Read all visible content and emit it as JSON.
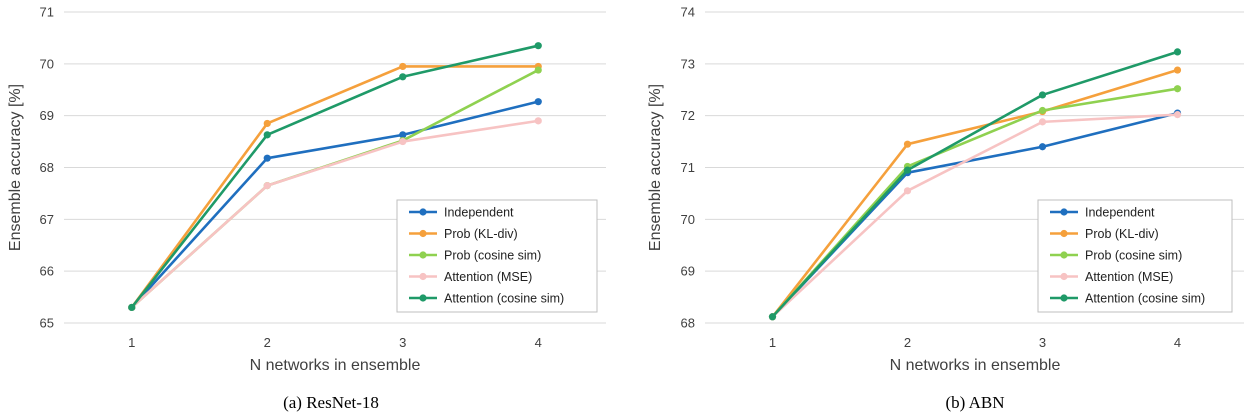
{
  "colors": {
    "Independent": "#1f6fbf",
    "Prob (KL-div)": "#f5a03c",
    "Prob (cosine sim)": "#8fd150",
    "Attention (MSE)": "#f7c3c3",
    "Attention (cosine sim)": "#1f9a68"
  },
  "chart_data": [
    {
      "type": "line",
      "caption": "(a) ResNet-18",
      "xlabel": "N networks in ensemble",
      "ylabel": "Ensemble accuracy [%]",
      "x": [
        1,
        2,
        3,
        4
      ],
      "ylim": [
        65,
        71
      ],
      "yticks": [
        65,
        66,
        67,
        68,
        69,
        70,
        71
      ],
      "grid": true,
      "legend_position": "bottom-right",
      "series": [
        {
          "name": "Independent",
          "values": [
            65.3,
            68.18,
            68.63,
            69.27
          ]
        },
        {
          "name": "Prob (KL-div)",
          "values": [
            65.3,
            68.85,
            69.95,
            69.95
          ]
        },
        {
          "name": "Prob (cosine sim)",
          "values": [
            65.3,
            67.65,
            68.52,
            69.88
          ]
        },
        {
          "name": "Attention (MSE)",
          "values": [
            65.3,
            67.65,
            68.5,
            68.9
          ]
        },
        {
          "name": "Attention (cosine sim)",
          "values": [
            65.3,
            68.63,
            69.75,
            70.35
          ]
        }
      ]
    },
    {
      "type": "line",
      "caption": "(b) ABN",
      "xlabel": "N networks in ensemble",
      "ylabel": "Ensemble accuracy [%]",
      "x": [
        1,
        2,
        3,
        4
      ],
      "ylim": [
        68,
        74
      ],
      "yticks": [
        68,
        69,
        70,
        71,
        72,
        73,
        74
      ],
      "grid": true,
      "legend_position": "bottom-right",
      "series": [
        {
          "name": "Independent",
          "values": [
            68.12,
            70.9,
            71.4,
            72.05
          ]
        },
        {
          "name": "Prob (KL-div)",
          "values": [
            68.12,
            71.45,
            72.08,
            72.88
          ]
        },
        {
          "name": "Prob (cosine sim)",
          "values": [
            68.12,
            71.02,
            72.1,
            72.52
          ]
        },
        {
          "name": "Attention (MSE)",
          "values": [
            68.12,
            70.55,
            71.88,
            72.02
          ]
        },
        {
          "name": "Attention (cosine sim)",
          "values": [
            68.12,
            70.95,
            72.4,
            73.23
          ]
        }
      ]
    }
  ]
}
